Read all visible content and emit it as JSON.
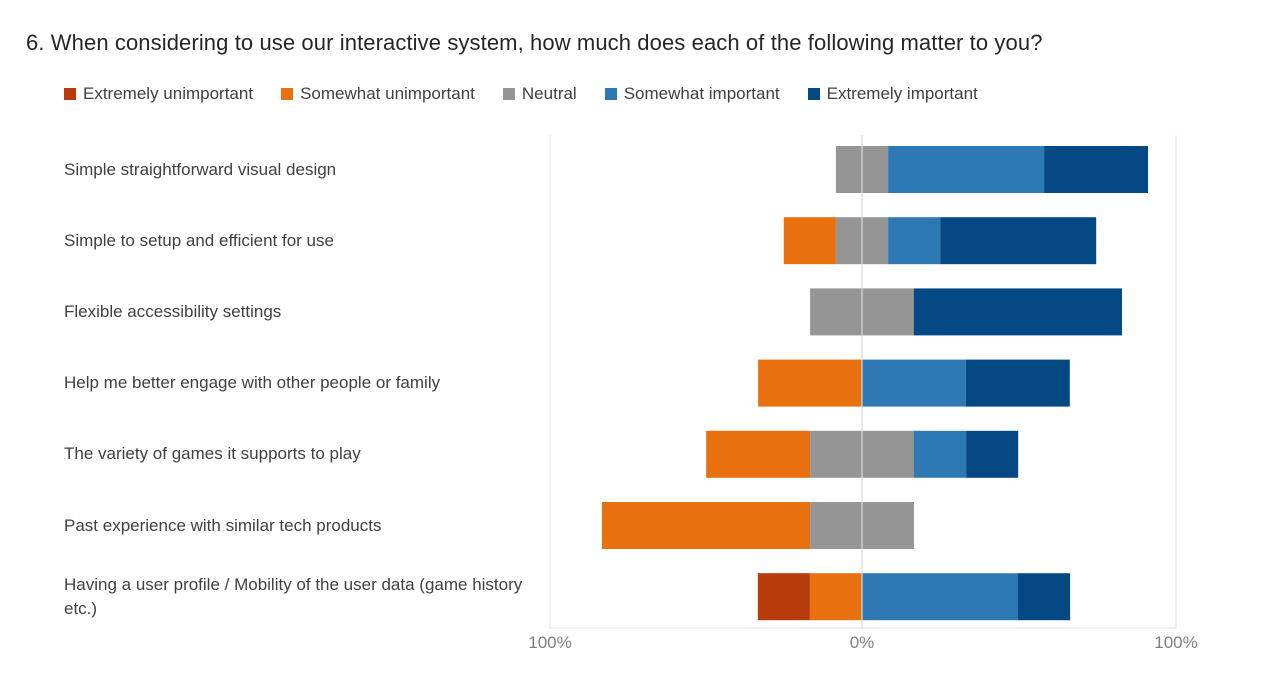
{
  "question_number": "6.",
  "question_text": "When considering to use our interactive system, how much does each of the following matter to you?",
  "colors": {
    "extremely_unimportant": "#B83C0B",
    "somewhat_unimportant": "#E8700E",
    "neutral": "#959595",
    "somewhat_important": "#2E79B4",
    "extremely_important": "#044984"
  },
  "chart_data": {
    "type": "bar",
    "orientation": "horizontal",
    "stacked": "diverging",
    "categories": [
      "Simple straightforward visual design",
      "Simple to setup and efficient for use",
      "Flexible accessibility settings",
      "Help me better engage with other people or family",
      "The variety of games it supports to play",
      "Past experience with similar tech products",
      "Having a user profile / Mobility of the user data (game history etc.)"
    ],
    "series": [
      {
        "name": "Extremely unimportant",
        "values": [
          0,
          0,
          0,
          0,
          0,
          0,
          16.7
        ]
      },
      {
        "name": "Somewhat unimportant",
        "values": [
          0,
          16.7,
          0,
          33.3,
          33.3,
          66.7,
          16.7
        ]
      },
      {
        "name": "Neutral",
        "values": [
          16.7,
          16.7,
          33.3,
          0,
          33.3,
          33.3,
          0
        ]
      },
      {
        "name": "Somewhat important",
        "values": [
          50,
          16.7,
          0,
          33.3,
          16.7,
          0,
          50
        ]
      },
      {
        "name": "Extremely important",
        "values": [
          33.3,
          50,
          66.7,
          33.3,
          16.7,
          0,
          16.7
        ]
      }
    ],
    "x_ticks": [
      "100%",
      "0%",
      "100%"
    ],
    "xlim": [
      -100,
      100
    ],
    "legend_position": "top",
    "grid": false
  }
}
